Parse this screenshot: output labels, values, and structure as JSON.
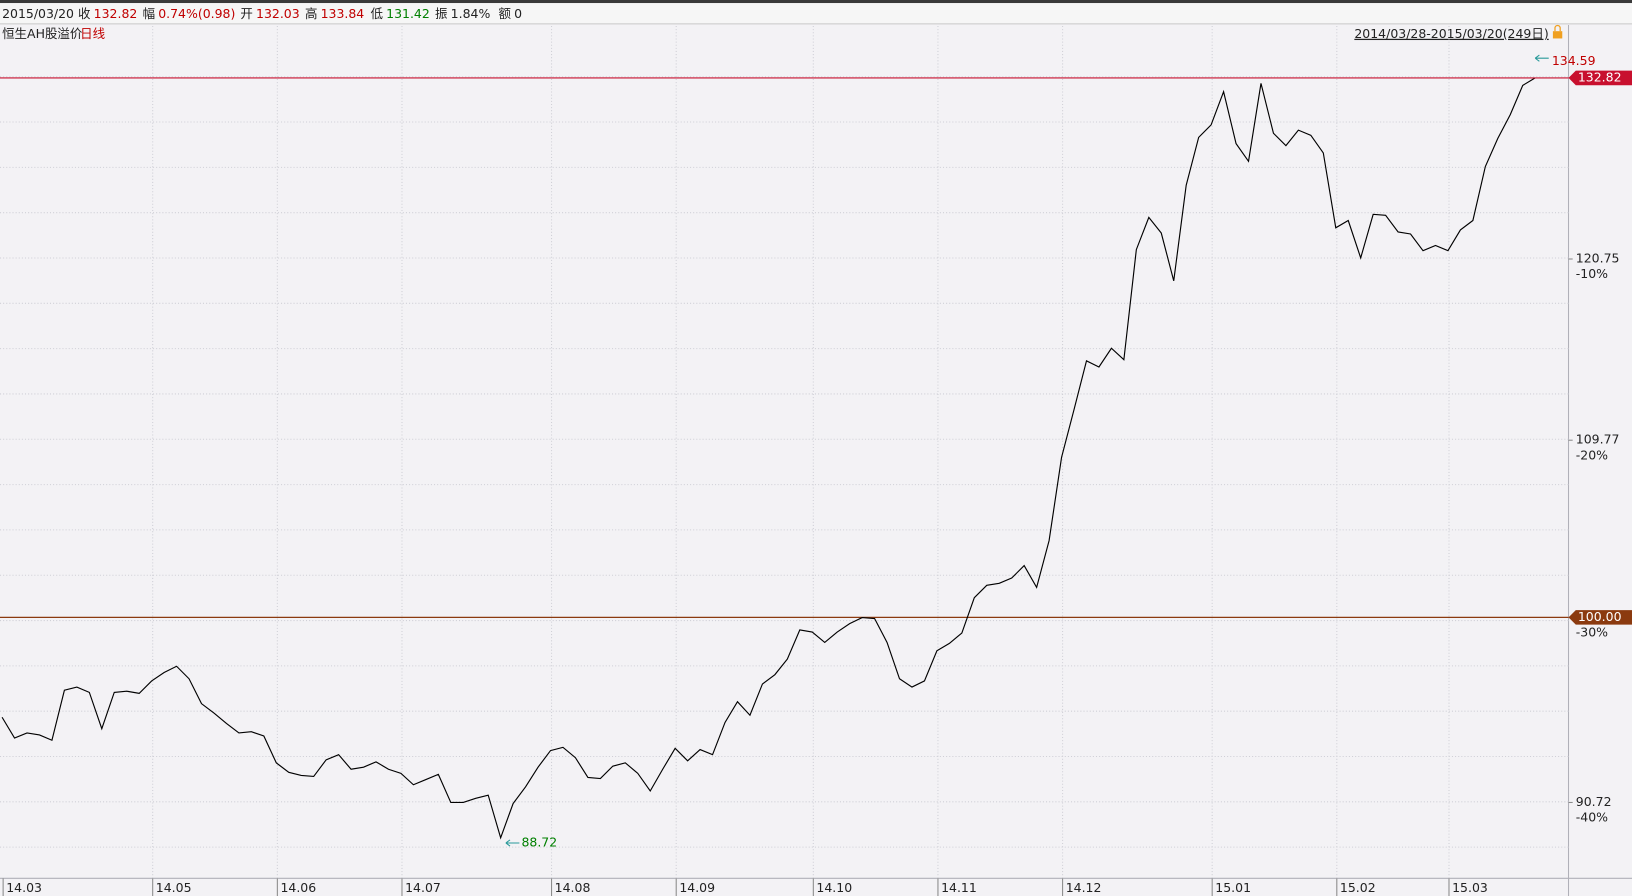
{
  "header": {
    "date": "2015/03/20",
    "items": [
      {
        "label": "收",
        "value": "132.82"
      },
      {
        "label": "幅",
        "value": "0.74%(0.98)"
      },
      {
        "label": "开",
        "value": "132.03"
      },
      {
        "label": "高",
        "value": "133.84"
      },
      {
        "label": "低",
        "value": "131.42"
      },
      {
        "label": "振",
        "value": "1.84%"
      },
      {
        "label": "额",
        "value": "0"
      }
    ]
  },
  "chart_data": {
    "type": "line",
    "title": "恒生AH股溢价",
    "period": "日线",
    "range_label": "2014/03/28-2015/03/20(249日)",
    "categories": [
      "14.03",
      null,
      null,
      null,
      null,
      null,
      null,
      null,
      null,
      null,
      null,
      null,
      "14.05",
      null,
      null,
      null,
      null,
      null,
      null,
      null,
      null,
      null,
      "14.06",
      null,
      null,
      null,
      null,
      null,
      null,
      null,
      null,
      null,
      "14.07",
      null,
      null,
      null,
      null,
      null,
      null,
      null,
      null,
      null,
      null,
      null,
      "14.08",
      null,
      null,
      null,
      null,
      null,
      null,
      null,
      null,
      null,
      "14.09",
      null,
      null,
      null,
      null,
      null,
      null,
      null,
      null,
      null,
      null,
      "14.10",
      null,
      null,
      null,
      null,
      null,
      null,
      null,
      null,
      null,
      "14.11",
      null,
      null,
      null,
      null,
      null,
      null,
      null,
      null,
      null,
      "14.12",
      null,
      null,
      null,
      null,
      null,
      null,
      null,
      null,
      null,
      null,
      null,
      "15.01",
      null,
      null,
      null,
      null,
      null,
      null,
      null,
      null,
      null,
      "15.02",
      null,
      null,
      null,
      null,
      null,
      null,
      null,
      null,
      "15.03",
      null,
      null,
      null,
      null,
      null,
      null,
      null
    ],
    "series": [
      {
        "color": "#000000",
        "values": [
          94.88,
          93.85,
          94.1,
          94.0,
          93.74,
          96.24,
          96.4,
          96.13,
          94.31,
          96.13,
          96.19,
          96.08,
          96.71,
          97.14,
          97.46,
          96.82,
          95.56,
          95.09,
          94.57,
          94.1,
          94.16,
          93.95,
          92.63,
          92.17,
          92.02,
          91.97,
          92.78,
          93.03,
          92.32,
          92.42,
          92.68,
          92.32,
          92.12,
          91.57,
          91.82,
          92.07,
          90.72,
          90.72,
          90.92,
          91.07,
          89.05,
          90.67,
          91.47,
          92.42,
          93.23,
          93.39,
          92.88,
          91.92,
          91.87,
          92.47,
          92.63,
          92.12,
          91.27,
          92.32,
          93.34,
          92.73,
          93.28,
          93.03,
          94.62,
          95.66,
          94.98,
          96.55,
          97.03,
          97.83,
          99.34,
          99.23,
          98.69,
          99.23,
          99.67,
          99.99,
          99.94,
          98.69,
          96.82,
          96.4,
          96.71,
          98.26,
          98.64,
          99.18,
          101.04,
          101.7,
          101.81,
          102.09,
          102.76,
          101.59,
          104.12,
          108.78,
          111.55,
          114.45,
          114.08,
          115.21,
          114.52,
          121.35,
          123.42,
          122.41,
          119.37,
          125.53,
          128.73,
          129.58,
          131.86,
          128.31,
          127.12,
          132.44,
          129.01,
          128.17,
          129.22,
          128.87,
          127.68,
          122.75,
          123.22,
          120.82,
          123.62,
          123.56,
          122.48,
          122.35,
          121.28,
          121.61,
          121.28,
          122.61,
          123.22,
          126.77,
          128.66,
          130.28,
          132.3,
          132.82
        ]
      }
    ],
    "ylim": [
      87.17,
      136.5
    ],
    "log_scale": true,
    "yticks": [
      90.72,
      {
        "value": 100,
        "label": "100.00"
      },
      109.77,
      120.75
    ],
    "ytick_percents": [
      "-40%",
      "-30%",
      "-20%",
      "-10%"
    ],
    "base_line_color": "#8b3a0f",
    "last_line_color": "#c8102e",
    "high_label": 134.59,
    "low_label": 88.72,
    "grid": true
  }
}
